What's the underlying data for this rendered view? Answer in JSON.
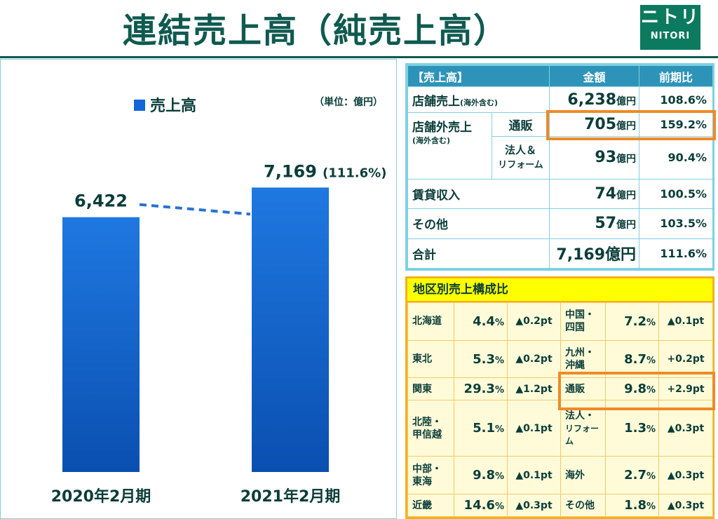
{
  "header": {
    "title": "連結売上高（純売上高）",
    "logo_big": "ニトリ",
    "logo_small": "NITORI"
  },
  "chart_data": {
    "type": "bar",
    "legend": "売上高",
    "unit_note": "（単位：億円）",
    "categories": [
      "2020年2月期",
      "2021年2月期"
    ],
    "values": [
      6422,
      7169
    ],
    "value_labels": [
      "6,422",
      "7,169"
    ],
    "growth_label": "(111.6%)",
    "ylim": [
      0,
      7600
    ],
    "colors": {
      "bar_top": "#1f78e0",
      "bar_bottom": "#0a4fb0",
      "dash": "#2a72d0"
    }
  },
  "sales_table": {
    "headers": [
      "【売上高】",
      "金額",
      "前期比"
    ],
    "unit": "億円",
    "rows": {
      "stores": {
        "label": "店舗売上",
        "sub": "(海外含む)",
        "amount": "6,238",
        "ratio": "108.6%"
      },
      "nonstore": {
        "label": "店舗外売上",
        "sub": "(海外含む)"
      },
      "mailorder": {
        "label": "通販",
        "amount": "705",
        "ratio": "159.2%"
      },
      "corporate": {
        "label1": "法人＆",
        "label2": "リフォーム",
        "amount": "93",
        "ratio": "90.4%"
      },
      "rent": {
        "label": "賃貸収入",
        "amount": "74",
        "ratio": "100.5%"
      },
      "other": {
        "label": "その他",
        "amount": "57",
        "ratio": "103.5%"
      },
      "total": {
        "label": "合計",
        "amount": "7,169億円",
        "ratio": "111.6%"
      }
    }
  },
  "region_table": {
    "title": "地区別売上構成比",
    "rows": [
      {
        "l_name": "北海道",
        "l_val": "4.4",
        "l_chg": "▲0.2pt",
        "r_name": "中国・\n四国",
        "r_val": "7.2",
        "r_chg": "▲0.1pt"
      },
      {
        "l_name": "東北",
        "l_val": "5.3",
        "l_chg": "▲0.2pt",
        "r_name": "九州・\n沖縄",
        "r_val": "8.7",
        "r_chg": "+0.2pt"
      },
      {
        "l_name": "関東",
        "l_val": "29.3",
        "l_chg": "▲1.2pt",
        "r_name": "通販",
        "r_val": "9.8",
        "r_chg": "+2.9pt"
      },
      {
        "l_name": "北陸・\n甲信越",
        "l_val": "5.1",
        "l_chg": "▲0.1pt",
        "r_name": "法人・\nリフォーム",
        "r_val": "1.3",
        "r_chg": "▲0.3pt"
      },
      {
        "l_name": "中部・\n東海",
        "l_val": "9.8",
        "l_chg": "▲0.1pt",
        "r_name": "海外",
        "r_val": "2.7",
        "r_chg": "▲0.3pt"
      },
      {
        "l_name": "近畿",
        "l_val": "14.6",
        "l_chg": "▲0.3pt",
        "r_name": "その他",
        "r_val": "1.8",
        "r_chg": "▲0.3pt"
      }
    ],
    "pct_sign": "%"
  }
}
